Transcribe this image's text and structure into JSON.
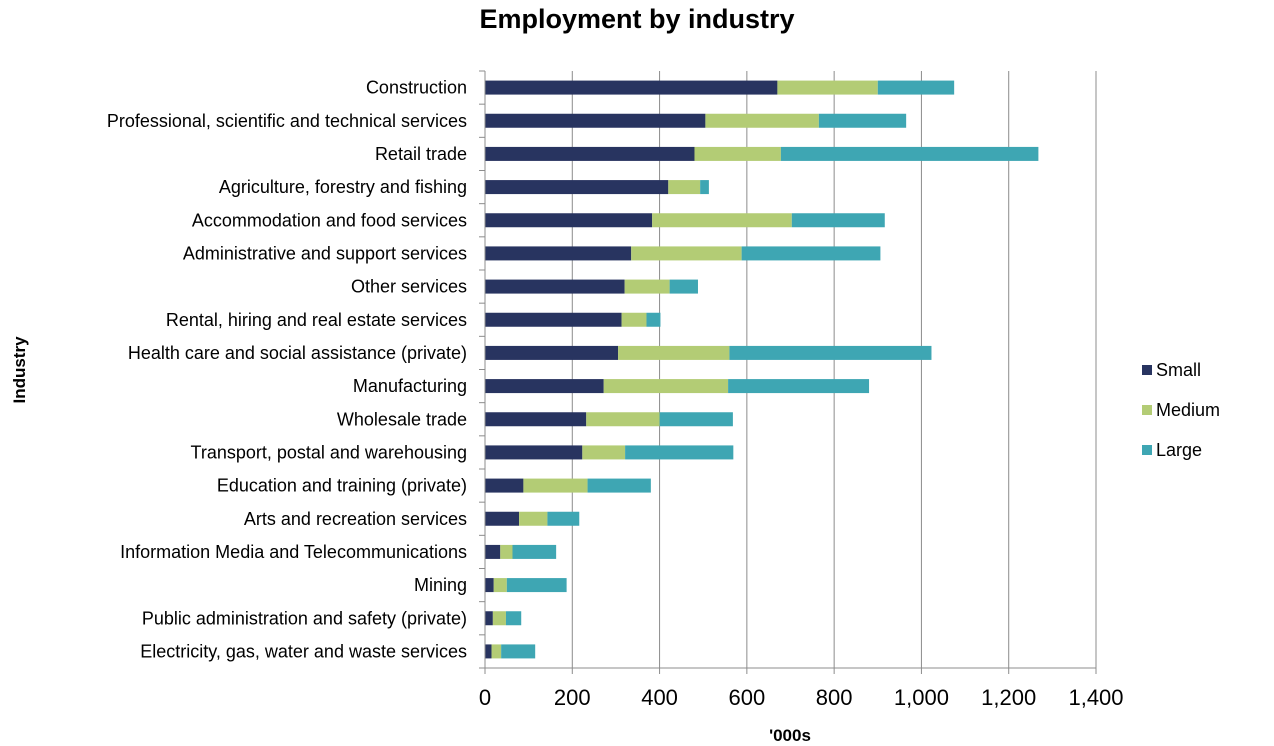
{
  "chart_data": {
    "type": "bar",
    "orientation": "horizontal",
    "stacked": true,
    "title": "Employment by industry",
    "xlabel": "'000s",
    "ylabel": "Industry",
    "xlim": [
      0,
      1400
    ],
    "x_ticks": [
      0,
      200,
      400,
      600,
      800,
      1000,
      1200,
      1400
    ],
    "x_tick_labels": [
      "0",
      "200",
      "400",
      "600",
      "800",
      "1,000",
      "1,200",
      "1,400"
    ],
    "grid": "vertical",
    "legend_position": "right",
    "categories": [
      "Construction",
      "Professional, scientific and technical services",
      "Retail trade",
      "Agriculture, forestry and fishing",
      "Accommodation and food services",
      "Administrative and support services",
      "Other services",
      "Rental, hiring and real estate services",
      "Health care and social assistance (private)",
      "Manufacturing",
      "Wholesale trade",
      "Transport, postal and warehousing",
      "Education and training (private)",
      "Arts and recreation services",
      "Information Media and Telecommunications",
      "Mining",
      "Public administration and safety (private)",
      "Electricity, gas, water and waste services"
    ],
    "series": [
      {
        "name": "Small",
        "color": "#283460",
        "values": [
          670,
          505,
          480,
          420,
          383,
          335,
          320,
          313,
          305,
          272,
          232,
          223,
          88,
          78,
          35,
          20,
          18,
          15
        ]
      },
      {
        "name": "Medium",
        "color": "#b3cc75",
        "values": [
          230,
          260,
          198,
          73,
          320,
          253,
          103,
          57,
          255,
          285,
          168,
          98,
          147,
          65,
          28,
          30,
          30,
          22
        ]
      },
      {
        "name": "Large",
        "color": "#3ea6b3",
        "values": [
          175,
          200,
          590,
          20,
          213,
          318,
          65,
          32,
          463,
          323,
          168,
          248,
          145,
          73,
          100,
          137,
          35,
          78
        ]
      }
    ]
  }
}
